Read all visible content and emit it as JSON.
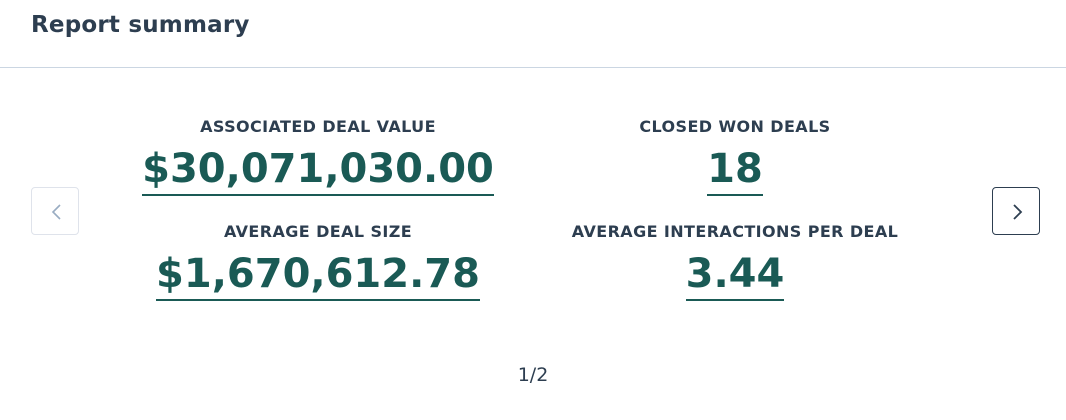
{
  "header": {
    "title": "Report summary"
  },
  "metrics": [
    {
      "label": "ASSOCIATED DEAL VALUE",
      "value": "$30,071,030.00"
    },
    {
      "label": "CLOSED WON DEALS",
      "value": "18"
    },
    {
      "label": "AVERAGE DEAL SIZE",
      "value": "$1,670,612.78"
    },
    {
      "label": "AVERAGE INTERACTIONS PER DEAL",
      "value": "3.44"
    }
  ],
  "pagination": {
    "text": "1/2"
  }
}
